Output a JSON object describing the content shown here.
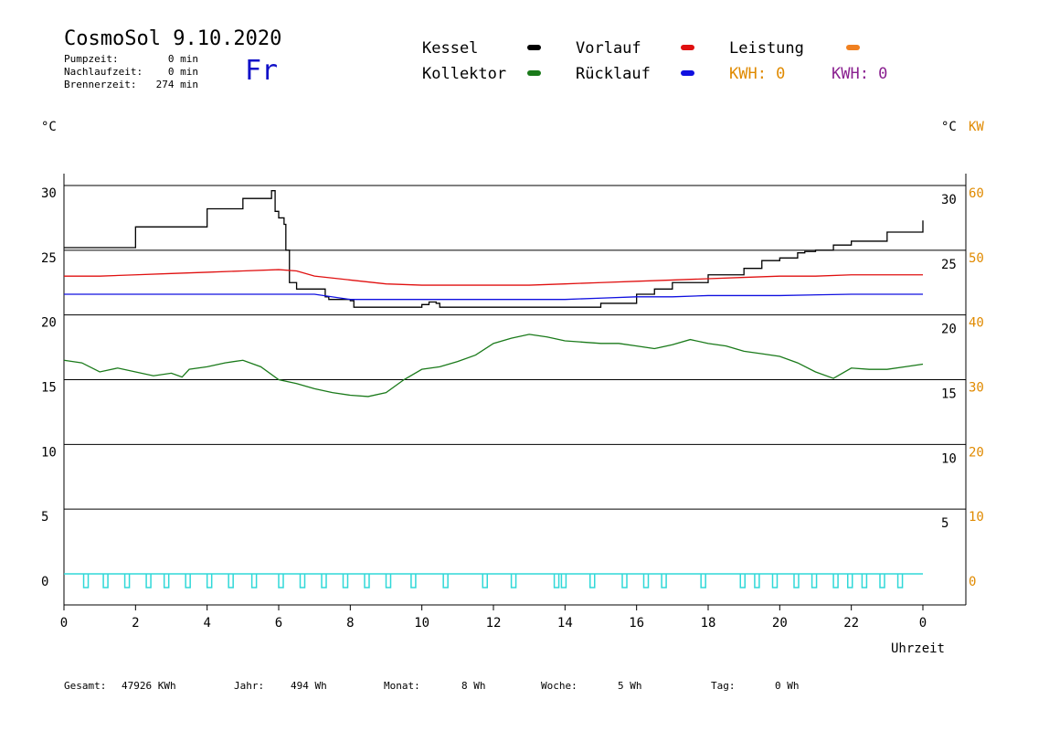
{
  "header": {
    "title": "CosmoSol 9.10.2020",
    "pumpzeit_label": "Pumpzeit:",
    "pumpzeit_value": "0 min",
    "nachlaufzeit_label": "Nachlaufzeit:",
    "nachlaufzeit_value": "0 min",
    "brennerzeit_label": "Brennerzeit:",
    "brennerzeit_value": "274 min",
    "day": "Fr"
  },
  "legend": {
    "kessel": "Kessel",
    "kollektor": "Kollektor",
    "vorlauf": "Vorlauf",
    "ruecklauf": "Rücklauf",
    "leistung": "Leistung",
    "kwh1": "KWH: 0",
    "kwh2": "KWH: 0"
  },
  "axes": {
    "left_unit": "°C",
    "right_unit": "°C",
    "right_unit2": "KW",
    "xlabel": "Uhrzeit"
  },
  "footer": {
    "gesamt_label": "Gesamt:",
    "gesamt_value": "47926 KWh",
    "jahr_label": "Jahr:",
    "jahr_value": "494 Wh",
    "monat_label": "Monat:",
    "monat_value": "8 Wh",
    "woche_label": "Woche:",
    "woche_value": "5 Wh",
    "tag_label": "Tag:",
    "tag_value": "0 Wh"
  },
  "colors": {
    "kessel": "#000000",
    "kollektor": "#1a7a1a",
    "vorlauf": "#e01010",
    "ruecklauf": "#1010e0",
    "leistung": "#f08020",
    "kwh2": "#8a2090",
    "pump": "#30d8d8",
    "right_kw": "#e08a00"
  },
  "chart_data": {
    "type": "line",
    "xlabel": "Uhrzeit",
    "ylabel": "°C",
    "xlim": [
      0,
      24
    ],
    "ylim": [
      -2.5,
      31
    ],
    "y2lim": [
      -5,
      62
    ],
    "x_ticks": [
      "0",
      "2",
      "4",
      "6",
      "8",
      "10",
      "12",
      "14",
      "16",
      "18",
      "20",
      "22",
      "0"
    ],
    "y_ticks_left": [
      "30",
      "25",
      "20",
      "15",
      "10",
      "5",
      "0"
    ],
    "y_ticks_right": [
      "30",
      "25",
      "20",
      "15",
      "10",
      "5"
    ],
    "y2_ticks": [
      "60",
      "50",
      "40",
      "30",
      "20",
      "10",
      "0"
    ],
    "grid": true,
    "series": [
      {
        "name": "Kessel",
        "x": [
          0,
          2,
          4,
          5,
          5.8,
          5.9,
          6.0,
          6.15,
          6.2,
          6.3,
          6.5,
          7.0,
          7.3,
          7.4,
          8.0,
          8.1,
          9.0,
          9.5,
          10.0,
          10.2,
          10.4,
          10.5,
          11.0,
          12.0,
          13.0,
          14.0,
          14.7,
          15.0,
          16.0,
          16.5,
          17.0,
          18.0,
          19.0,
          19.5,
          20.0,
          20.5,
          20.7,
          21.0,
          21.5,
          22.0,
          23.0,
          24.0
        ],
        "y": [
          25.2,
          26.8,
          28.2,
          29.0,
          29.6,
          28.0,
          27.5,
          27.0,
          25.0,
          22.5,
          22.0,
          22.0,
          21.4,
          21.2,
          21.1,
          20.6,
          20.6,
          20.6,
          20.8,
          21.0,
          20.9,
          20.6,
          20.6,
          20.6,
          20.6,
          20.6,
          20.6,
          20.9,
          21.6,
          22.0,
          22.5,
          23.1,
          23.6,
          24.2,
          24.4,
          24.8,
          24.9,
          25.0,
          25.4,
          25.7,
          26.4,
          27.3
        ]
      },
      {
        "name": "Vorlauf",
        "x": [
          0,
          1,
          2,
          3,
          4,
          5,
          6,
          6.5,
          7,
          8,
          9,
          10,
          11,
          12,
          13,
          14,
          15,
          16,
          17,
          18,
          19,
          20,
          21,
          22,
          23,
          24
        ],
        "y": [
          23.0,
          23.0,
          23.1,
          23.2,
          23.3,
          23.4,
          23.5,
          23.4,
          23.0,
          22.7,
          22.4,
          22.3,
          22.3,
          22.3,
          22.3,
          22.4,
          22.5,
          22.6,
          22.7,
          22.8,
          22.9,
          23.0,
          23.0,
          23.1,
          23.1,
          23.1
        ]
      },
      {
        "name": "Rücklauf",
        "x": [
          0,
          2,
          4,
          6,
          7,
          7.5,
          8,
          10,
          12,
          14,
          15,
          16,
          17,
          18,
          20,
          22,
          24
        ],
        "y": [
          21.6,
          21.6,
          21.6,
          21.6,
          21.6,
          21.4,
          21.2,
          21.2,
          21.2,
          21.2,
          21.3,
          21.4,
          21.4,
          21.5,
          21.5,
          21.6,
          21.6
        ]
      },
      {
        "name": "Kollektor",
        "x": [
          0,
          0.5,
          1,
          1.5,
          2,
          2.5,
          3,
          3.3,
          3.5,
          4,
          4.5,
          5,
          5.5,
          6,
          6.5,
          7,
          7.5,
          8,
          8.5,
          9,
          9.5,
          10,
          10.5,
          11,
          11.5,
          12,
          12.5,
          13,
          13.5,
          14,
          14.5,
          15,
          15.5,
          16,
          16.5,
          17,
          17.5,
          18,
          18.5,
          19,
          19.5,
          20,
          20.5,
          21,
          21.5,
          22,
          22.5,
          23,
          23.5,
          24
        ],
        "y": [
          16.5,
          16.3,
          15.6,
          15.9,
          15.6,
          15.3,
          15.5,
          15.2,
          15.8,
          16.0,
          16.3,
          16.5,
          16.0,
          15.0,
          14.7,
          14.3,
          14.0,
          13.8,
          13.7,
          14.0,
          15.0,
          15.8,
          16.0,
          16.4,
          16.9,
          17.8,
          18.2,
          18.5,
          18.3,
          18.0,
          17.9,
          17.8,
          17.8,
          17.6,
          17.4,
          17.7,
          18.1,
          17.8,
          17.6,
          17.2,
          17.0,
          16.8,
          16.3,
          15.6,
          15.1,
          15.9,
          15.8,
          15.8,
          16.0,
          16.2
        ]
      },
      {
        "name": "Leistung",
        "x": [
          0,
          24
        ],
        "y": [
          0,
          0
        ]
      }
    ],
    "pump_pulses_x": [
      0.55,
      1.1,
      1.7,
      2.3,
      2.8,
      3.4,
      4.0,
      4.6,
      5.25,
      6.0,
      6.6,
      7.2,
      7.8,
      8.4,
      9.0,
      9.7,
      10.6,
      11.7,
      12.5,
      13.7,
      13.9,
      14.7,
      15.6,
      16.2,
      16.7,
      17.8,
      18.9,
      19.3,
      19.8,
      20.4,
      20.9,
      21.5,
      21.9,
      22.3,
      22.8,
      23.3
    ]
  }
}
